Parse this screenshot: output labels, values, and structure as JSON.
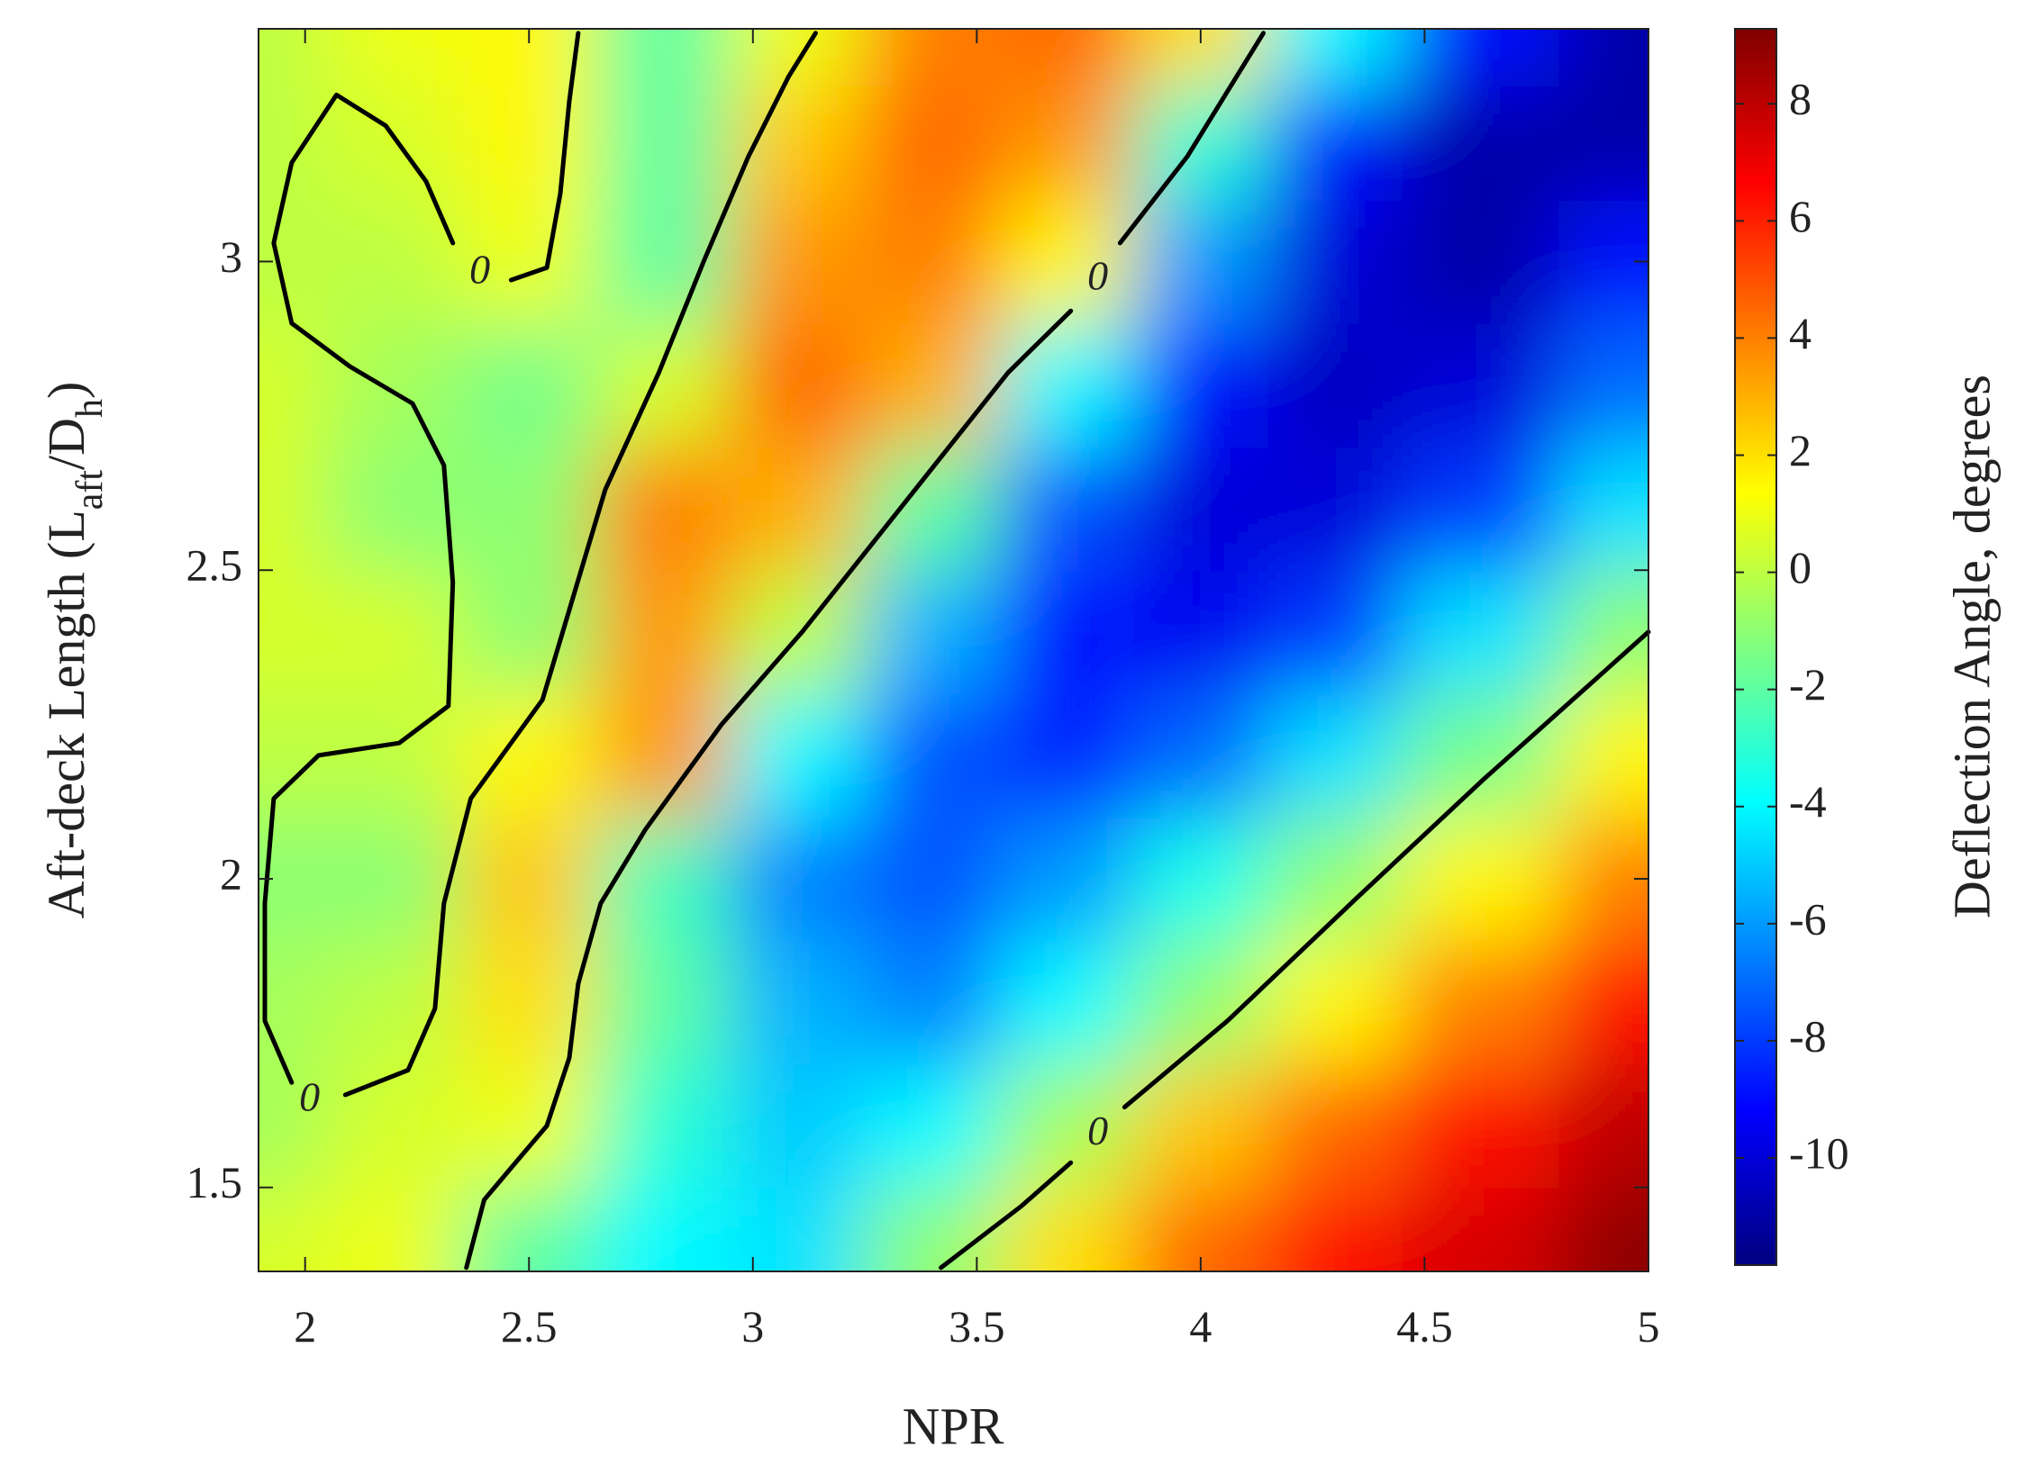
{
  "chart_data": {
    "type": "contour",
    "xlabel": "NPR",
    "ylabel": [
      "Aft-deck Length (L",
      "aft",
      "/D",
      "h",
      ")"
    ],
    "colorbar_label": "Deflection Angle, degrees",
    "colormap": "jet",
    "xlim": [
      1.896,
      5.0
    ],
    "ylim": [
      1.364,
      3.377
    ],
    "xticks": [
      2,
      2.5,
      3,
      3.5,
      4,
      4.5,
      5
    ],
    "yticks": [
      1.5,
      2,
      2.5,
      3
    ],
    "clim": [
      -11.83,
      9.28
    ],
    "cticks": [
      -10,
      -8,
      -6,
      -4,
      -2,
      0,
      2,
      4,
      6,
      8
    ],
    "grid_x": [
      1.9,
      2.2,
      2.5,
      2.8,
      3.1,
      3.4,
      3.7,
      4.0,
      4.3,
      4.6,
      5.0
    ],
    "grid_y": [
      1.4,
      1.6,
      1.8,
      2.0,
      2.2,
      2.4,
      2.6,
      2.8,
      3.0,
      3.2,
      3.37
    ],
    "z": [
      [
        0.5,
        1,
        -2,
        -4,
        -4.5,
        -1,
        2,
        4.5,
        6.5,
        7.5,
        9
      ],
      [
        -0.5,
        0.5,
        1,
        -3,
        -5,
        -4,
        -0.5,
        2.5,
        4.5,
        6.5,
        8
      ],
      [
        -0.5,
        0,
        2,
        -2,
        -5.5,
        -6.5,
        -4,
        -1,
        1.5,
        4,
        6.5
      ],
      [
        -1,
        -1,
        2.5,
        -2.5,
        -6.5,
        -7.5,
        -6,
        -3.5,
        -1,
        1.5,
        4
      ],
      [
        0,
        0,
        1.5,
        3.5,
        -4,
        -7.5,
        -8.5,
        -7,
        -4.5,
        -1.5,
        1.5
      ],
      [
        0.5,
        0.5,
        -1,
        3.5,
        0,
        -5.5,
        -9,
        -9.5,
        -8,
        -4.5,
        -1
      ],
      [
        0.5,
        -1,
        -1,
        4,
        3,
        -2,
        -7.5,
        -10,
        -10,
        -8,
        -4.5
      ],
      [
        0.5,
        -0.5,
        -1.5,
        0.5,
        4.5,
        3,
        -4,
        -9,
        -10.5,
        -10,
        -7
      ],
      [
        0,
        0,
        1,
        -2,
        3.5,
        4,
        1.5,
        -6,
        -10,
        -11,
        -9
      ],
      [
        0,
        0.5,
        1.5,
        -2,
        2.5,
        4.5,
        3.5,
        -3,
        -9,
        -11,
        -11
      ],
      [
        0,
        1,
        1.5,
        -2,
        1,
        4,
        4.5,
        2,
        -4,
        -9,
        -11
      ]
    ],
    "contours": [
      {
        "level": 0,
        "color": "#000000",
        "lines": [
          {
            "x": [
              1.97,
              1.91,
              1.91,
              1.93,
              2.03,
              2.21,
              2.32,
              2.33,
              2.31,
              2.24,
              2.1,
              1.97,
              1.93,
              1.97,
              2.07,
              2.18,
              2.27,
              2.33
            ],
            "y": [
              1.67,
              1.77,
              1.96,
              2.13,
              2.2,
              2.22,
              2.28,
              2.48,
              2.67,
              2.77,
              2.83,
              2.9,
              3.03,
              3.16,
              3.27,
              3.22,
              3.13,
              3.03
            ]
          },
          {
            "x": [
              2.46,
              2.54,
              2.57,
              2.59,
              2.61
            ],
            "y": [
              2.97,
              2.99,
              3.11,
              3.26,
              3.37
            ]
          },
          {
            "x": [
              2.09,
              2.23,
              2.29,
              2.31,
              2.37,
              2.43,
              2.53,
              2.6,
              2.67,
              2.79,
              2.89,
              2.99,
              3.08,
              3.14
            ],
            "y": [
              1.65,
              1.69,
              1.79,
              1.96,
              2.13,
              2.19,
              2.29,
              2.46,
              2.63,
              2.82,
              3.0,
              3.17,
              3.3,
              3.37
            ]
          },
          {
            "x": [
              2.36,
              2.4,
              2.47,
              2.54,
              2.59,
              2.61,
              2.66,
              2.76,
              2.93,
              3.11,
              3.34,
              3.57,
              3.71,
              null,
              3.82,
              3.97,
              4.14
            ],
            "y": [
              1.37,
              1.48,
              1.54,
              1.6,
              1.71,
              1.83,
              1.96,
              2.08,
              2.25,
              2.4,
              2.61,
              2.82,
              2.92,
              null,
              3.03,
              3.17,
              3.37
            ]
          },
          {
            "x": [
              3.42,
              3.6,
              3.71,
              null,
              3.83,
              4.06,
              4.35,
              4.63,
              5.0
            ],
            "y": [
              1.37,
              1.47,
              1.54,
              null,
              1.63,
              1.77,
              1.97,
              2.16,
              2.4
            ]
          }
        ],
        "label_positions": [
          {
            "x": 2.01,
            "y": 1.64
          },
          {
            "x": 2.39,
            "y": 2.98
          },
          {
            "x": 3.77,
            "y": 2.97
          },
          {
            "x": 3.77,
            "y": 1.585
          }
        ]
      }
    ]
  }
}
